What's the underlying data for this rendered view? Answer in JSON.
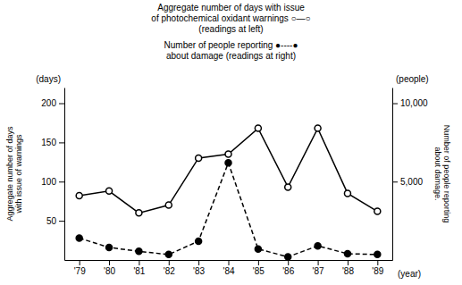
{
  "chart_data": {
    "type": "line",
    "annotations": [
      "Aggregate number of days with issue",
      "of photochemical oxidant warnings ○—○",
      "(readings at left)",
      "Number of people reporting ●----●",
      "about damage  (readings at right)"
    ],
    "xlabel": "(year)",
    "ylabel": "Aggregate number of days\nwith issue of warnings",
    "y2label": "Number of people reporting\nabout damage.",
    "y_unit": "(days)",
    "y2_unit": "(people)",
    "categories": [
      "'79",
      "'80",
      "'81",
      "'82",
      "'83",
      "'84",
      "'85",
      "'86",
      "'87",
      "'88",
      "'89"
    ],
    "series": [
      {
        "values": [
          82,
          88,
          60,
          70,
          130,
          135,
          168,
          93,
          168,
          85,
          62
        ],
        "color": "#000000",
        "marker": "circle-open",
        "line_style": "solid",
        "axis": "y"
      },
      {
        "values": [
          1400,
          800,
          550,
          350,
          1200,
          6200,
          700,
          200,
          900,
          400,
          350
        ],
        "color": "#000000",
        "marker": "circle",
        "line_style": "dashed",
        "axis": "y2"
      }
    ],
    "ylim": [
      0,
      220
    ],
    "yticks": [
      50,
      100,
      150,
      200
    ],
    "y2lim": [
      0,
      11000
    ],
    "y2ticks": [
      {
        "value": 5000,
        "label": "5,000"
      },
      {
        "value": 10000,
        "label": "10,000"
      }
    ]
  }
}
